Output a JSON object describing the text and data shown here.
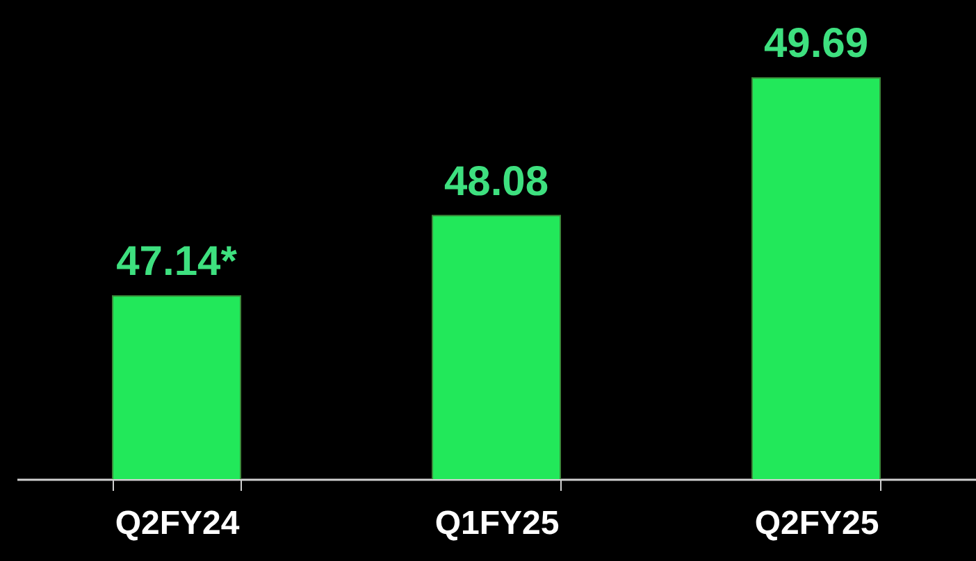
{
  "chart_data": {
    "type": "bar",
    "categories": [
      "Q2FY24",
      "Q1FY25",
      "Q2FY25"
    ],
    "values": [
      47.14,
      48.08,
      49.69
    ],
    "value_labels": [
      "47.14*",
      "48.08",
      "49.69"
    ],
    "color": "#22e85a",
    "ylim": [
      45,
      50.6
    ],
    "tick_labels": "x",
    "grid": false
  }
}
